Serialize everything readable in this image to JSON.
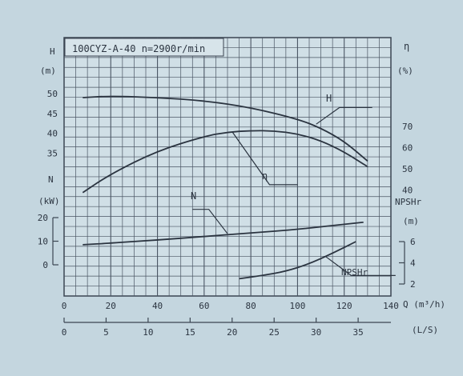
{
  "chart_data": {
    "type": "line",
    "title": "100CYZ-A-40 n=2900r/min",
    "x_axis": {
      "label": "Q (m³/h)",
      "ticks": [
        "0",
        "20",
        "40",
        "60",
        "80",
        "100",
        "120",
        "140"
      ],
      "range": [
        0,
        140
      ]
    },
    "x2_axis": {
      "label": "(L/S)",
      "ticks": [
        "0",
        "5",
        "10",
        "15",
        "20",
        "25",
        "30",
        "35"
      ],
      "range": [
        0,
        38.9
      ]
    },
    "left_axes": {
      "head": {
        "label": "H",
        "unit": "(m)",
        "ticks": [
          "50",
          "45",
          "40",
          "35"
        ],
        "range": [
          30,
          53.3
        ]
      },
      "power": {
        "label": "N",
        "unit": "(kW)",
        "ticks": [
          "20",
          "10",
          "0"
        ],
        "range": [
          0,
          20
        ]
      }
    },
    "right_axes": {
      "efficiency": {
        "label": "η",
        "unit": "(%)",
        "ticks": [
          "70",
          "60",
          "50",
          "40"
        ],
        "range": [
          35,
          90
        ]
      },
      "npshr": {
        "label": "NPSHr",
        "unit": "(m)",
        "ticks": [
          "6",
          "4",
          "2"
        ],
        "range": [
          2,
          6
        ]
      }
    },
    "series": [
      {
        "name": "H",
        "axis": "head",
        "points": [
          [
            8,
            49.0
          ],
          [
            20,
            49.4
          ],
          [
            40,
            49.0
          ],
          [
            60,
            48.2
          ],
          [
            80,
            46.5
          ],
          [
            100,
            43.6
          ],
          [
            110,
            41.3
          ],
          [
            120,
            38.0
          ],
          [
            130,
            33.0
          ]
        ]
      },
      {
        "name": "η",
        "axis": "efficiency",
        "points": [
          [
            8,
            38.8
          ],
          [
            20,
            47.6
          ],
          [
            40,
            58.5
          ],
          [
            60,
            65.3
          ],
          [
            70,
            67.3
          ],
          [
            80,
            68.0
          ],
          [
            90,
            67.9
          ],
          [
            100,
            66.5
          ],
          [
            110,
            63.3
          ],
          [
            120,
            58.0
          ],
          [
            130,
            51.0
          ]
        ]
      },
      {
        "name": "N",
        "axis": "power",
        "points": [
          [
            8,
            8.5
          ],
          [
            20,
            9.2
          ],
          [
            40,
            10.5
          ],
          [
            60,
            12.0
          ],
          [
            80,
            13.5
          ],
          [
            100,
            15.0
          ],
          [
            120,
            17.2
          ],
          [
            128,
            18.0
          ]
        ]
      },
      {
        "name": "NPSHr",
        "axis": "npshr",
        "points": [
          [
            75,
            2.5
          ],
          [
            85,
            2.8
          ],
          [
            95,
            3.2
          ],
          [
            105,
            3.9
          ],
          [
            115,
            4.9
          ],
          [
            125,
            6.0
          ]
        ]
      }
    ],
    "grid": true
  }
}
